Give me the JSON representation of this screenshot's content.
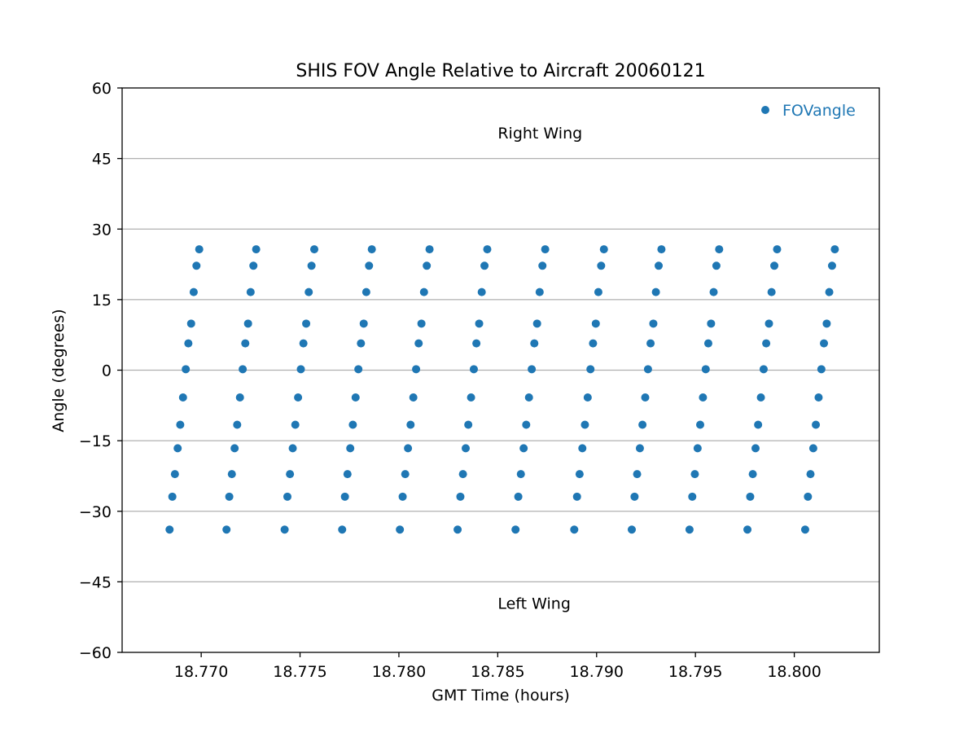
{
  "chart_data": {
    "type": "scatter",
    "title": "SHIS FOV Angle Relative to Aircraft 20060121",
    "xlabel": "GMT Time (hours)",
    "ylabel": "Angle (degrees)",
    "xlim": [
      18.766,
      18.8043
    ],
    "ylim": [
      -60,
      60
    ],
    "x_ticks": [
      18.77,
      18.775,
      18.78,
      18.785,
      18.79,
      18.795,
      18.8
    ],
    "x_tick_labels": [
      "18.770",
      "18.775",
      "18.780",
      "18.785",
      "18.790",
      "18.795",
      "18.800"
    ],
    "y_ticks": [
      -60,
      -45,
      -30,
      -15,
      0,
      15,
      30,
      45,
      60
    ],
    "y_tick_labels": [
      "−60",
      "−45",
      "−30",
      "−15",
      "0",
      "15",
      "30",
      "45",
      "60"
    ],
    "grid": "horizontal",
    "legend": {
      "placement": "top-right",
      "entries": [
        "FOVangle"
      ]
    },
    "annotations": [
      {
        "text": "Right Wing",
        "x": 18.785,
        "y": 50.5
      },
      {
        "text": "Left Wing",
        "x": 18.785,
        "y": -49.5
      }
    ],
    "colors": {
      "series": "#1f77b4",
      "grid": "#b0b0b0"
    },
    "series": [
      {
        "name": "FOVangle",
        "scan_start_times": [
          18.7684,
          18.77128,
          18.77422,
          18.77713,
          18.78005,
          18.78297,
          18.7859,
          18.78887,
          18.79178,
          18.7947,
          18.79763,
          18.80055
        ],
        "scan_step_hours": 0.000136,
        "scan_angles": [
          -33.9,
          -26.9,
          -22.1,
          -16.6,
          -11.6,
          -5.8,
          0.2,
          5.7,
          9.9,
          16.6,
          22.2,
          25.7
        ],
        "x": [],
        "y": []
      }
    ]
  }
}
